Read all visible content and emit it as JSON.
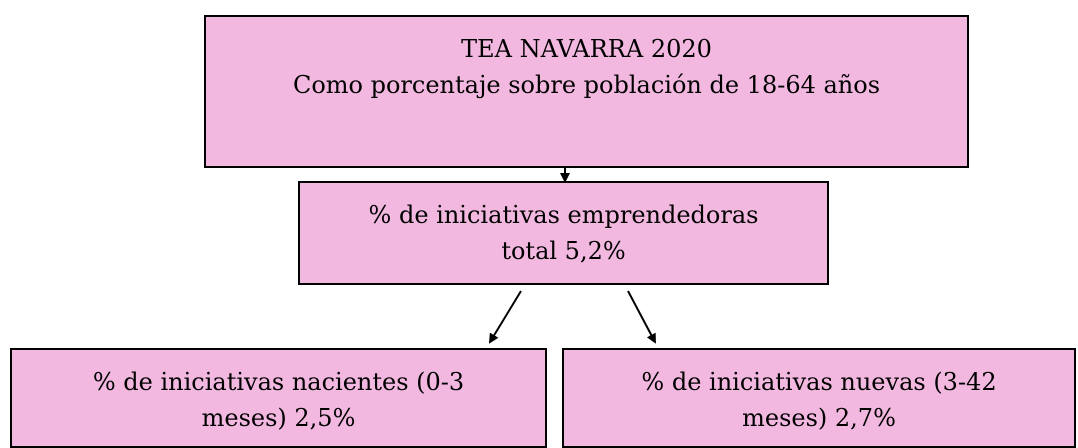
{
  "nodes": [
    {
      "lines": [
        "TEA NAVARRA 2020",
        "Como porcentaje sobre población de 18-64 años"
      ]
    },
    {
      "lines": [
        "% de iniciativas emprendedoras",
        "total 5,2%"
      ]
    },
    {
      "lines": [
        "% de iniciativas nacientes (0-3",
        "meses) 2,5%"
      ]
    },
    {
      "lines": [
        "% de iniciativas nuevas (3-42",
        "meses) 2,7%"
      ]
    }
  ]
}
